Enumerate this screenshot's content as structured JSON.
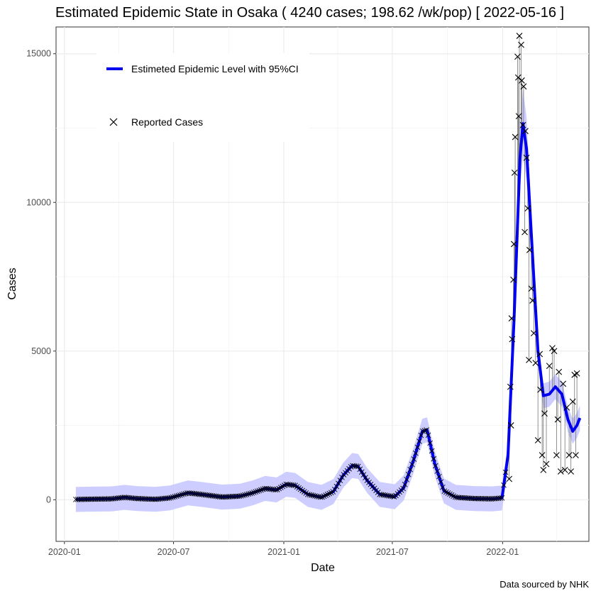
{
  "chart_data": {
    "type": "line",
    "title": "Estimated Epidemic State in Osaka  ( 4240 cases; 198.62 /wk/pop) [ 2022-05-16 ]",
    "xlabel": "Date",
    "ylabel": "Cases",
    "caption": "Data sourced by NHK",
    "xlim": [
      "2019-12-18",
      "2022-05-25"
    ],
    "ylim": [
      -1400,
      15900
    ],
    "x_ticks": [
      "2020-01",
      "2020-07",
      "2021-01",
      "2021-07",
      "2022-01"
    ],
    "y_ticks": [
      0,
      5000,
      10000,
      15000
    ],
    "grid": true,
    "legend": {
      "position": "top-left"
    },
    "legend_entries": [
      {
        "label": "Estimeted Epidemic Level with 95%CI",
        "marker": "line",
        "color": "#0000ee"
      },
      {
        "label": "Reported Cases",
        "marker": "x",
        "color": "#000000"
      }
    ],
    "series": [
      {
        "name": "Estimeted Epidemic Level with 95%CI",
        "kind": "line_with_band",
        "color": "#0000ee",
        "band_color": "#c8c8ff",
        "points": [
          [
            "2020-01-20",
            10
          ],
          [
            "2020-02-15",
            20
          ],
          [
            "2020-03-20",
            30
          ],
          [
            "2020-04-10",
            80
          ],
          [
            "2020-05-01",
            40
          ],
          [
            "2020-06-01",
            15
          ],
          [
            "2020-06-25",
            60
          ],
          [
            "2020-07-25",
            230
          ],
          [
            "2020-08-20",
            170
          ],
          [
            "2020-09-20",
            90
          ],
          [
            "2020-10-20",
            120
          ],
          [
            "2020-11-10",
            230
          ],
          [
            "2020-12-01",
            380
          ],
          [
            "2020-12-20",
            330
          ],
          [
            "2021-01-05",
            520
          ],
          [
            "2021-01-20",
            480
          ],
          [
            "2021-02-10",
            180
          ],
          [
            "2021-03-05",
            80
          ],
          [
            "2021-03-25",
            280
          ],
          [
            "2021-04-10",
            820
          ],
          [
            "2021-04-25",
            1150
          ],
          [
            "2021-05-05",
            1120
          ],
          [
            "2021-05-20",
            650
          ],
          [
            "2021-06-10",
            180
          ],
          [
            "2021-07-05",
            100
          ],
          [
            "2021-07-20",
            400
          ],
          [
            "2021-08-05",
            1300
          ],
          [
            "2021-08-20",
            2300
          ],
          [
            "2021-08-28",
            2350
          ],
          [
            "2021-09-10",
            1200
          ],
          [
            "2021-09-25",
            300
          ],
          [
            "2021-10-15",
            80
          ],
          [
            "2021-11-15",
            40
          ],
          [
            "2021-12-15",
            30
          ],
          [
            "2021-12-31",
            60
          ],
          [
            "2022-01-10",
            1500
          ],
          [
            "2022-01-20",
            6000
          ],
          [
            "2022-01-30",
            11500
          ],
          [
            "2022-02-04",
            12650
          ],
          [
            "2022-02-10",
            11800
          ],
          [
            "2022-02-20",
            8200
          ],
          [
            "2022-03-01",
            5000
          ],
          [
            "2022-03-10",
            3500
          ],
          [
            "2022-03-20",
            3550
          ],
          [
            "2022-03-30",
            3800
          ],
          [
            "2022-04-10",
            3550
          ],
          [
            "2022-04-20",
            2700
          ],
          [
            "2022-04-28",
            2300
          ],
          [
            "2022-05-05",
            2500
          ],
          [
            "2022-05-10",
            2750
          ]
        ]
      },
      {
        "name": "Reported Cases",
        "kind": "scatter_x",
        "color": "#000000",
        "points": [
          [
            "2022-01-14",
            3800
          ],
          [
            "2022-01-17",
            5400
          ],
          [
            "2022-01-19",
            7400
          ],
          [
            "2022-01-20",
            8600
          ],
          [
            "2022-01-21",
            11000
          ],
          [
            "2022-01-22",
            12200
          ],
          [
            "2022-01-26",
            14900
          ],
          [
            "2022-01-27",
            14200
          ],
          [
            "2022-01-28",
            12900
          ],
          [
            "2022-01-29",
            15600
          ],
          [
            "2022-02-01",
            15300
          ],
          [
            "2022-02-02",
            14100
          ],
          [
            "2022-02-04",
            12600
          ],
          [
            "2022-02-05",
            13900
          ],
          [
            "2022-02-08",
            12400
          ],
          [
            "2022-02-10",
            11500
          ],
          [
            "2022-02-12",
            9800
          ],
          [
            "2022-02-15",
            8400
          ],
          [
            "2022-02-18",
            7100
          ],
          [
            "2022-02-20",
            6700
          ],
          [
            "2022-02-22",
            5600
          ],
          [
            "2022-02-25",
            4600
          ],
          [
            "2022-03-01",
            2000
          ],
          [
            "2022-03-04",
            4900
          ],
          [
            "2022-03-08",
            1500
          ],
          [
            "2022-03-10",
            1000
          ],
          [
            "2022-03-15",
            1200
          ],
          [
            "2022-03-20",
            4500
          ],
          [
            "2022-03-25",
            5100
          ],
          [
            "2022-03-28",
            5000
          ],
          [
            "2022-04-01",
            1500
          ],
          [
            "2022-04-05",
            4300
          ],
          [
            "2022-04-08",
            950
          ],
          [
            "2022-04-12",
            3900
          ],
          [
            "2022-04-15",
            1000
          ],
          [
            "2022-04-18",
            3100
          ],
          [
            "2022-04-22",
            1500
          ],
          [
            "2022-04-25",
            950
          ],
          [
            "2022-04-28",
            3300
          ],
          [
            "2022-05-01",
            4200
          ],
          [
            "2022-05-03",
            1500
          ],
          [
            "2022-05-05",
            4250
          ],
          [
            "2022-01-12",
            700
          ],
          [
            "2022-01-15",
            2500
          ],
          [
            "2022-01-16",
            6100
          ],
          [
            "2022-02-07",
            9000
          ],
          [
            "2022-02-14",
            4700
          ],
          [
            "2022-03-05",
            3700
          ],
          [
            "2022-03-12",
            2900
          ],
          [
            "2022-04-03",
            2700
          ]
        ]
      }
    ]
  }
}
